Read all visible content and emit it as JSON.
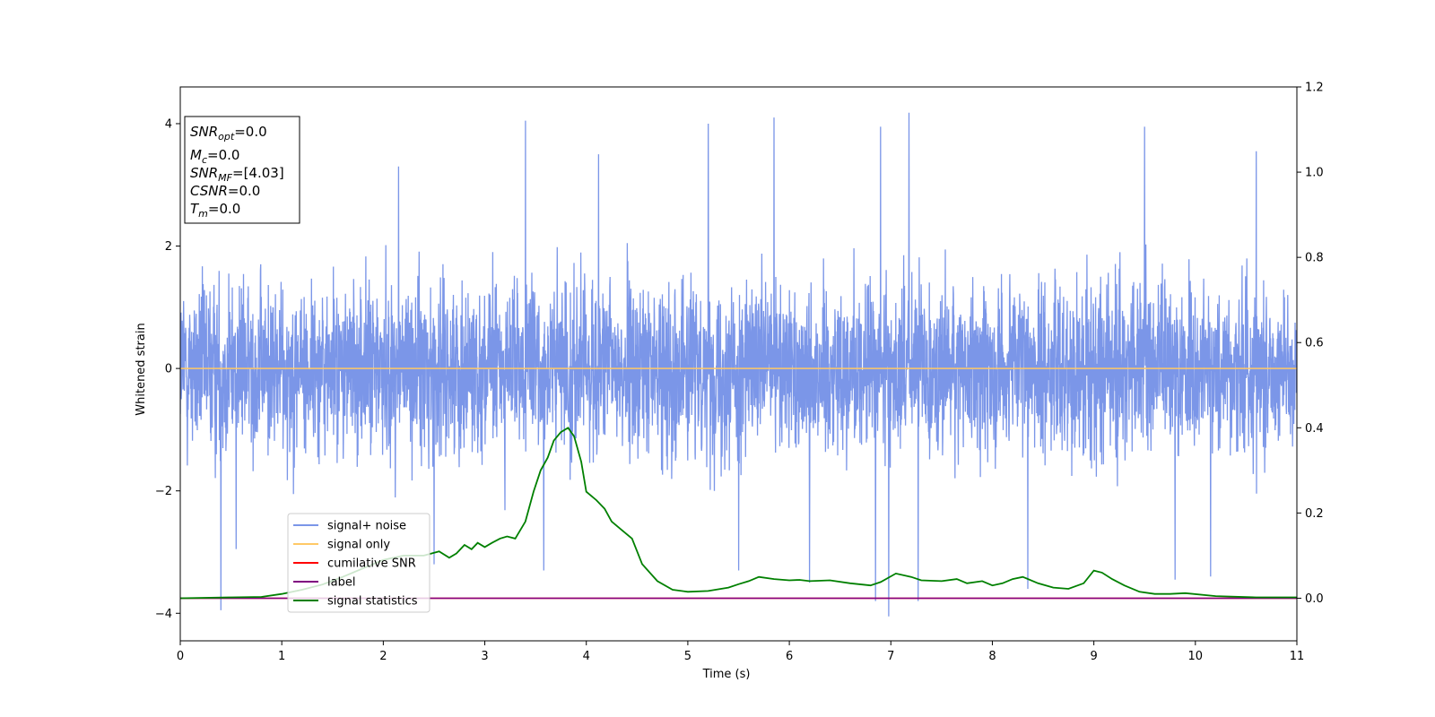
{
  "chart_data": {
    "type": "line",
    "xlabel": "Time (s)",
    "ylabel": "Whitened strain",
    "xlim": [
      0,
      11
    ],
    "ylim": [
      -4.45,
      4.6
    ],
    "y2lim": [
      -0.1,
      1.2
    ],
    "x_ticks": [
      0,
      1,
      2,
      3,
      4,
      5,
      6,
      7,
      8,
      9,
      10,
      11
    ],
    "y_ticks": [
      -4,
      -2,
      0,
      2,
      4
    ],
    "y2_ticks": [
      "0.0",
      "0.2",
      "0.4",
      "0.6",
      "0.8",
      "1.0",
      "1.2"
    ],
    "grid": false,
    "legend_position": "lower-left",
    "info_box": {
      "snr_opt": {
        "label": "SNR",
        "sub": "opt",
        "value": "=0.0"
      },
      "mc": {
        "label": "M",
        "sub": "c",
        "value": "=0.0"
      },
      "snr_mf": {
        "label": "SNR",
        "sub": "MF",
        "value": "=[4.03]"
      },
      "csnr": {
        "label": "CSNR",
        "value": "=0.0"
      },
      "tm": {
        "label": "T",
        "sub": "m",
        "value": "=0.0"
      }
    },
    "series": [
      {
        "name": "signal+ noise",
        "color": "#7b96e8",
        "axis": "left",
        "description": "whitened noise, approx. uniform band between -2 and 2 with spikes to about +/-4",
        "envelope": [
          -2.0,
          2.0
        ],
        "peaks": [
          {
            "x": 3.4,
            "y": 4.05
          },
          {
            "x": 5.2,
            "y": 4.0
          },
          {
            "x": 5.85,
            "y": 4.1
          },
          {
            "x": 6.9,
            "y": 3.95
          },
          {
            "x": 7.18,
            "y": 4.18
          },
          {
            "x": 9.5,
            "y": 3.95
          },
          {
            "x": 10.6,
            "y": 3.55
          },
          {
            "x": 4.12,
            "y": 3.5
          },
          {
            "x": 2.15,
            "y": 3.3
          },
          {
            "x": 0.4,
            "y": -3.95
          },
          {
            "x": 6.98,
            "y": -4.05
          },
          {
            "x": 6.85,
            "y": -3.8
          },
          {
            "x": 7.27,
            "y": -3.8
          },
          {
            "x": 8.35,
            "y": -3.6
          },
          {
            "x": 9.8,
            "y": -3.45
          },
          {
            "x": 10.15,
            "y": -3.4
          },
          {
            "x": 3.58,
            "y": -3.3
          },
          {
            "x": 2.5,
            "y": -3.2
          },
          {
            "x": 5.5,
            "y": -3.3
          },
          {
            "x": 6.2,
            "y": -3.5
          },
          {
            "x": 0.55,
            "y": -2.95
          }
        ]
      },
      {
        "name": "signal only",
        "color": "#ffc966",
        "axis": "left",
        "x": [
          0,
          11
        ],
        "values": [
          0,
          0
        ]
      },
      {
        "name": "cumilative SNR",
        "color": "#ff0000",
        "axis": "right",
        "x": [
          0,
          11
        ],
        "values": [
          0,
          0
        ]
      },
      {
        "name": "label",
        "color": "#800080",
        "axis": "right",
        "x": [
          0,
          11
        ],
        "values": [
          0,
          0
        ]
      },
      {
        "name": "signal statistics",
        "color": "#008000",
        "axis": "right",
        "x": [
          0,
          0.5,
          0.8,
          1.0,
          1.2,
          1.4,
          1.6,
          1.8,
          2.0,
          2.2,
          2.4,
          2.55,
          2.65,
          2.72,
          2.8,
          2.87,
          2.93,
          3.0,
          3.07,
          3.15,
          3.22,
          3.3,
          3.4,
          3.48,
          3.55,
          3.62,
          3.68,
          3.75,
          3.82,
          3.88,
          3.95,
          4.0,
          4.1,
          4.18,
          4.25,
          4.35,
          4.45,
          4.55,
          4.7,
          4.85,
          5.0,
          5.2,
          5.4,
          5.5,
          5.6,
          5.7,
          5.85,
          6.0,
          6.1,
          6.2,
          6.4,
          6.6,
          6.8,
          6.9,
          7.05,
          7.2,
          7.3,
          7.5,
          7.65,
          7.75,
          7.9,
          8.0,
          8.1,
          8.2,
          8.3,
          8.45,
          8.6,
          8.75,
          8.9,
          9.0,
          9.08,
          9.18,
          9.3,
          9.45,
          9.6,
          9.75,
          9.9,
          10.2,
          10.6,
          11.0
        ],
        "values": [
          0.0,
          0.002,
          0.003,
          0.01,
          0.02,
          0.032,
          0.05,
          0.07,
          0.09,
          0.1,
          0.1,
          0.11,
          0.095,
          0.105,
          0.125,
          0.115,
          0.13,
          0.12,
          0.13,
          0.14,
          0.145,
          0.14,
          0.18,
          0.25,
          0.3,
          0.33,
          0.37,
          0.39,
          0.4,
          0.38,
          0.32,
          0.25,
          0.23,
          0.21,
          0.18,
          0.16,
          0.14,
          0.08,
          0.04,
          0.02,
          0.015,
          0.017,
          0.025,
          0.033,
          0.04,
          0.05,
          0.045,
          0.042,
          0.043,
          0.04,
          0.042,
          0.035,
          0.03,
          0.038,
          0.058,
          0.05,
          0.042,
          0.04,
          0.045,
          0.035,
          0.04,
          0.03,
          0.035,
          0.045,
          0.05,
          0.035,
          0.025,
          0.022,
          0.035,
          0.065,
          0.06,
          0.045,
          0.03,
          0.015,
          0.01,
          0.01,
          0.012,
          0.005,
          0.002,
          0.002
        ]
      }
    ]
  }
}
